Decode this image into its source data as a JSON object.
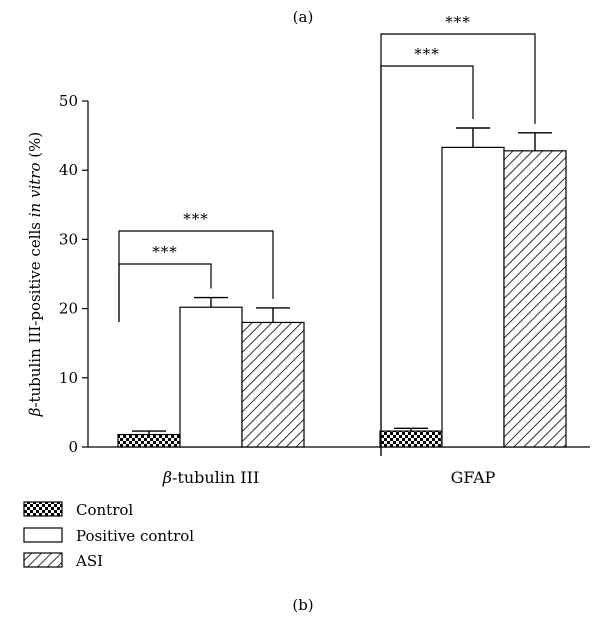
{
  "panel_labels": {
    "top": "(a)",
    "bottom": "(b)"
  },
  "chart_data": {
    "type": "bar",
    "title": "",
    "ylabel": {
      "symbol": "β",
      "text": "-tubulin III-positive cells ",
      "italic": "in vitro",
      "unit": " (%)"
    },
    "xlabel": "",
    "ylim": [
      0,
      50
    ],
    "yticks": [
      "0",
      "10",
      "20",
      "30",
      "40",
      "50"
    ],
    "categories": [
      {
        "symbol": "β",
        "text": "-tubulin III"
      },
      {
        "symbol": "",
        "text": "GFAP"
      }
    ],
    "series": [
      {
        "name": "Control",
        "values": [
          1.8,
          2.3
        ],
        "errors": [
          0.5,
          0.4
        ]
      },
      {
        "name": "Positive control",
        "values": [
          20.2,
          43.3
        ],
        "errors": [
          1.4,
          2.8
        ]
      },
      {
        "name": "ASI",
        "values": [
          18.0,
          42.8
        ],
        "errors": [
          2.1,
          2.6
        ]
      }
    ],
    "significance": [
      {
        "category": 0,
        "from_series": 0,
        "to_series": 1,
        "label": "***"
      },
      {
        "category": 0,
        "from_series": 0,
        "to_series": 2,
        "label": "***"
      },
      {
        "category": 1,
        "from_series": 0,
        "to_series": 1,
        "label": "***"
      },
      {
        "category": 1,
        "from_series": 0,
        "to_series": 2,
        "label": "***"
      }
    ],
    "legend_position": "bottom-left"
  }
}
